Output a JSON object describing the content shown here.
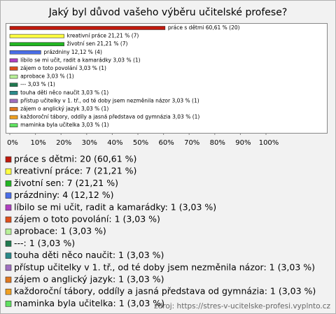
{
  "chart_data": {
    "type": "barh",
    "title": "Jaký byl důvod vašeho výběru učitelské profese?",
    "categories": [
      "práce s dětmi",
      "kreativní práce",
      "životní sen",
      "prázdniny",
      "líbilo se mi učit, radit a kamarádky",
      "zájem o toto povolání",
      "aprobace",
      "---",
      "touha děti něco naučit",
      "přístup učitelky v 1. tř., od té doby jsem nezměnila názor",
      "zájem o anglický jazyk",
      "každoroční tábory, oddíly a jasná představa od gymnázia",
      "maminka byla učitelka"
    ],
    "values": [
      60.61,
      21.21,
      21.21,
      12.12,
      3.03,
      3.03,
      3.03,
      3.03,
      3.03,
      3.03,
      3.03,
      3.03,
      3.03
    ],
    "value_labels": [
      "práce s dětmi 60,61 % (20)",
      "kreativní práce 21,21 % (7)",
      "životní sen 21,21 % (7)",
      "prázdniny 12,12 % (4)",
      "líbilo se mi učit, radit a kamarádky 3,03 % (1)",
      "zájem o toto povolání 3,03 % (1)",
      "aprobace 3,03 % (1)",
      "--- 3,03 % (1)",
      "touha děti něco naučit 3,03 % (1)",
      "přístup učitelky v 1. tř., od té doby jsem nezměnila názor 3,03 % (1)",
      "zájem o anglický jazyk 3,03 % (1)",
      "každoroční tábory, oddíly a jasná představa od gymnázia 3,03 % (1)",
      "maminka byla učitelka 3,03 % (1)"
    ],
    "legend_labels": [
      "práce s dětmi: 20 (60,61 %)",
      "kreativní práce: 7 (21,21 %)",
      "životní sen: 7 (21,21 %)",
      "prázdniny: 4 (12,12 %)",
      "líbilo se mi učit, radit a kamarádky: 1 (3,03 %)",
      "zájem o toto povolání: 1 (3,03 %)",
      "aprobace: 1 (3,03 %)",
      "---: 1 (3,03 %)",
      "touha děti něco naučit: 1 (3,03 %)",
      "přístup učitelky v 1. tř., od té doby jsem nezměnila názor: 1 (3,03 %)",
      "zájem o anglický jazyk: 1 (3,03 %)",
      "každoroční tábory, oddíly a jasná představa od gymnázia: 1 (3,03 %)",
      "maminka byla učitelka: 1 (3,03 %)"
    ],
    "colors": [
      "#c0180c",
      "#ffff40",
      "#22b522",
      "#4a6ee8",
      "#b040c0",
      "#e0501a",
      "#b8f098",
      "#207a50",
      "#2a8a8a",
      "#a070c0",
      "#e07820",
      "#f0a020",
      "#60e060"
    ],
    "xlim": [
      0,
      100
    ],
    "xticks": [
      {
        "value": 0,
        "label": "0%"
      },
      {
        "value": 10,
        "label": "10%"
      },
      {
        "value": 20,
        "label": "20%"
      },
      {
        "value": 30,
        "label": "30%"
      },
      {
        "value": 40,
        "label": "40%"
      },
      {
        "value": 50,
        "label": "50%"
      },
      {
        "value": 60,
        "label": "60%"
      },
      {
        "value": 70,
        "label": "70%"
      },
      {
        "value": 80,
        "label": "80%"
      },
      {
        "value": 90,
        "label": "90%"
      },
      {
        "value": 100,
        "label": "100%"
      }
    ],
    "source": "zdroj: https://stres-v-ucitelske-profesi.vyplnto.cz"
  }
}
